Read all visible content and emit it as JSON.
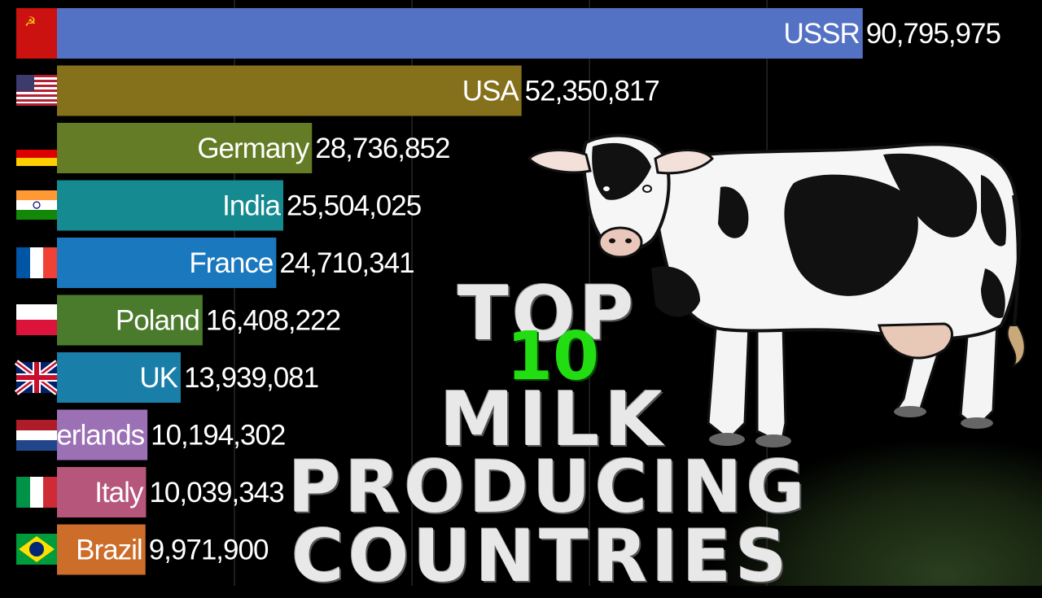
{
  "chart_data": {
    "type": "bar",
    "orientation": "horizontal",
    "categories": [
      "USSR",
      "USA",
      "Germany",
      "India",
      "France",
      "Poland",
      "UK",
      "Netherlands",
      "Italy",
      "Brazil"
    ],
    "values": [
      90795975,
      52350817,
      28736852,
      25504025,
      24710341,
      16408222,
      13939081,
      10194302,
      10039343,
      9971900
    ],
    "value_labels": [
      "90,795,975",
      "52,350,817",
      "28,736,852",
      "25,504,025",
      "24,710,341",
      "16,408,222",
      "13,939,081",
      "10,194,302",
      "10,039,343",
      "9,971,900"
    ],
    "colors": [
      "#5472c4",
      "#85701b",
      "#647c25",
      "#158a90",
      "#1a78be",
      "#4a7a2c",
      "#1a7fa8",
      "#9c70b4",
      "#b5567a",
      "#cc6d2a"
    ],
    "flags": [
      "ussr-flag",
      "usa-flag",
      "germany-flag",
      "india-flag",
      "france-flag",
      "poland-flag",
      "uk-flag",
      "netherlands-flag",
      "italy-flag",
      "brazil-flag"
    ],
    "xlim": [
      0,
      91000000
    ],
    "grid": true,
    "legend": "none"
  },
  "title": {
    "line1": "TOP",
    "number": "10",
    "line2": "MILK",
    "line3": "PRODUCING",
    "line4": "COUNTRIES"
  },
  "colors": {
    "background": "#000000",
    "title_number": "#22dd11",
    "grass": "#1a2a14"
  }
}
